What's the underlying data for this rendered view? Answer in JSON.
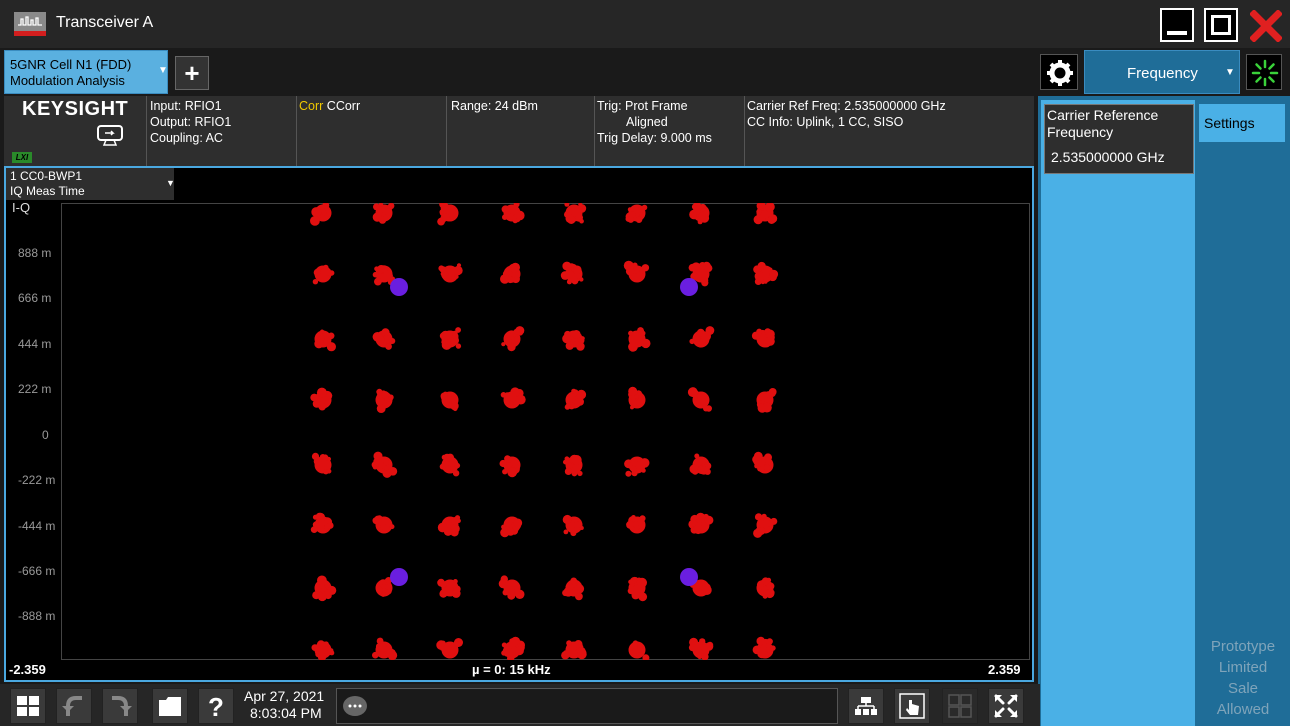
{
  "window": {
    "title": "Transceiver A"
  },
  "tabs": {
    "measurement_line1": "5GNR Cell N1 (FDD)",
    "measurement_line2": "Modulation Analysis",
    "add_label": "+",
    "menu_tab": "Frequency"
  },
  "brand": {
    "name": "KEYSIGHT",
    "lxi": "LXI"
  },
  "info": {
    "input": "Input: RFIO1",
    "output": "Output: RFIO1",
    "coupling": "Coupling: AC",
    "corr_prefix": "Corr",
    "corr_value": " CCorr",
    "range": "Range: 24 dBm",
    "trig_line1": "Trig: Prot Frame",
    "trig_line2": "Aligned",
    "trig_delay": "Trig Delay: 9.000 ms",
    "carrier_ref": "Carrier Ref Freq: 2.535000000 GHz",
    "cc_info": "CC Info: Uplink, 1 CC, SISO"
  },
  "plot": {
    "trace_line1": "1 CC0-BWP1",
    "trace_line2": "IQ Meas Time",
    "title": "I-Q",
    "y_ticks": [
      "888 m",
      "666 m",
      "444 m",
      "222 m",
      "0",
      "-222 m",
      "-444 m",
      "-666 m",
      "-888 m"
    ],
    "x_min": "-2.359",
    "x_max": "2.359",
    "x_center": "µ = 0: 15 kHz",
    "colors": {
      "data": "#e01010",
      "reference": "#6a1ee0"
    }
  },
  "right_panel": {
    "carrier_line1": "Carrier Reference",
    "carrier_line2": "Frequency",
    "carrier_value": "2.535000000 GHz",
    "settings_tab": "Settings",
    "watermark": [
      "Prototype",
      "Limited",
      "Sale",
      "Allowed"
    ]
  },
  "status": {
    "date": "Apr 27, 2021",
    "time": "8:03:04 PM"
  }
}
